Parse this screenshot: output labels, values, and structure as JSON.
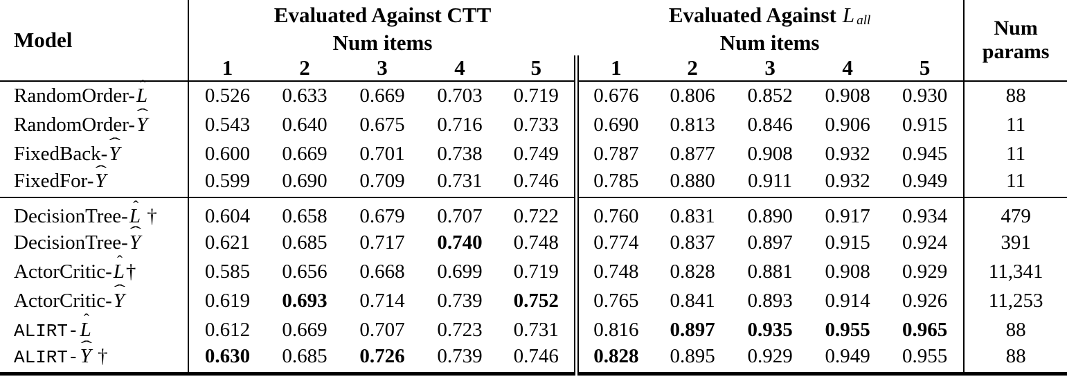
{
  "colors": {
    "text": "#000000",
    "background": "#ffffff"
  },
  "glyphs": {
    "hat": "ˆ",
    "dagger": "†"
  },
  "header": {
    "model_label": "Model",
    "group1": {
      "title": "Evaluated Against CTT",
      "subtitle": "Num items"
    },
    "group2": {
      "title_prefix": "Evaluated Against",
      "symbol": "L",
      "symbol_sub": "all",
      "subtitle": "Num items"
    },
    "item_cols": [
      "1",
      "2",
      "3",
      "4",
      "5"
    ],
    "params_line1": "Num",
    "params_line2": "params"
  },
  "table": {
    "groups": [
      {
        "rows": [
          {
            "model": {
              "prefix": "RandomOrder-",
              "mono": false,
              "sym": "L",
              "wide": false,
              "dagger": ""
            },
            "ctt": [
              "0.526",
              "0.633",
              "0.669",
              "0.703",
              "0.719"
            ],
            "ctt_bold": [],
            "lall": [
              "0.676",
              "0.806",
              "0.852",
              "0.908",
              "0.930"
            ],
            "lall_bold": [],
            "params": "88"
          },
          {
            "model": {
              "prefix": "RandomOrder-",
              "mono": false,
              "sym": "Y",
              "wide": true,
              "dagger": ""
            },
            "ctt": [
              "0.543",
              "0.640",
              "0.675",
              "0.716",
              "0.733"
            ],
            "ctt_bold": [],
            "lall": [
              "0.690",
              "0.813",
              "0.846",
              "0.906",
              "0.915"
            ],
            "lall_bold": [],
            "params": "11"
          },
          {
            "model": {
              "prefix": "FixedBack-",
              "mono": false,
              "sym": "Y",
              "wide": true,
              "dagger": ""
            },
            "ctt": [
              "0.600",
              "0.669",
              "0.701",
              "0.738",
              "0.749"
            ],
            "ctt_bold": [],
            "lall": [
              "0.787",
              "0.877",
              "0.908",
              "0.932",
              "0.945"
            ],
            "lall_bold": [],
            "params": "11"
          },
          {
            "model": {
              "prefix": "FixedFor-",
              "mono": false,
              "sym": "Y",
              "wide": true,
              "dagger": ""
            },
            "ctt": [
              "0.599",
              "0.690",
              "0.709",
              "0.731",
              "0.746"
            ],
            "ctt_bold": [],
            "lall": [
              "0.785",
              "0.880",
              "0.911",
              "0.932",
              "0.949"
            ],
            "lall_bold": [],
            "params": "11"
          }
        ]
      },
      {
        "rows": [
          {
            "model": {
              "prefix": "DecisionTree-",
              "mono": false,
              "sym": "L",
              "wide": false,
              "dagger": " †"
            },
            "ctt": [
              "0.604",
              "0.658",
              "0.679",
              "0.707",
              "0.722"
            ],
            "ctt_bold": [],
            "lall": [
              "0.760",
              "0.831",
              "0.890",
              "0.917",
              "0.934"
            ],
            "lall_bold": [],
            "params": "479"
          },
          {
            "model": {
              "prefix": "DecisionTree-",
              "mono": false,
              "sym": "Y",
              "wide": true,
              "dagger": ""
            },
            "ctt": [
              "0.621",
              "0.685",
              "0.717",
              "0.740",
              "0.748"
            ],
            "ctt_bold": [
              3
            ],
            "lall": [
              "0.774",
              "0.837",
              "0.897",
              "0.915",
              "0.924"
            ],
            "lall_bold": [],
            "params": "391"
          },
          {
            "model": {
              "prefix": "ActorCritic-",
              "mono": false,
              "sym": "L",
              "wide": false,
              "dagger": "†"
            },
            "ctt": [
              "0.585",
              "0.656",
              "0.668",
              "0.699",
              "0.719"
            ],
            "ctt_bold": [],
            "lall": [
              "0.748",
              "0.828",
              "0.881",
              "0.908",
              "0.929"
            ],
            "lall_bold": [],
            "params": "11,341"
          },
          {
            "model": {
              "prefix": "ActorCritic-",
              "mono": false,
              "sym": "Y",
              "wide": true,
              "dagger": ""
            },
            "ctt": [
              "0.619",
              "0.693",
              "0.714",
              "0.739",
              "0.752"
            ],
            "ctt_bold": [
              1,
              4
            ],
            "lall": [
              "0.765",
              "0.841",
              "0.893",
              "0.914",
              "0.926"
            ],
            "lall_bold": [],
            "params": "11,253"
          },
          {
            "model": {
              "prefix": "ALIRT-",
              "mono": true,
              "sym": "L",
              "wide": false,
              "dagger": ""
            },
            "ctt": [
              "0.612",
              "0.669",
              "0.707",
              "0.723",
              "0.731"
            ],
            "ctt_bold": [],
            "lall": [
              "0.816",
              "0.897",
              "0.935",
              "0.955",
              "0.965"
            ],
            "lall_bold": [
              1,
              2,
              3,
              4
            ],
            "params": "88"
          },
          {
            "model": {
              "prefix": "ALIRT-",
              "mono": true,
              "sym": "Y",
              "wide": true,
              "dagger": " †"
            },
            "ctt": [
              "0.630",
              "0.685",
              "0.726",
              "0.739",
              "0.746"
            ],
            "ctt_bold": [
              0,
              2
            ],
            "lall": [
              "0.828",
              "0.895",
              "0.929",
              "0.949",
              "0.955"
            ],
            "lall_bold": [
              0
            ],
            "params": "88"
          }
        ]
      }
    ]
  }
}
